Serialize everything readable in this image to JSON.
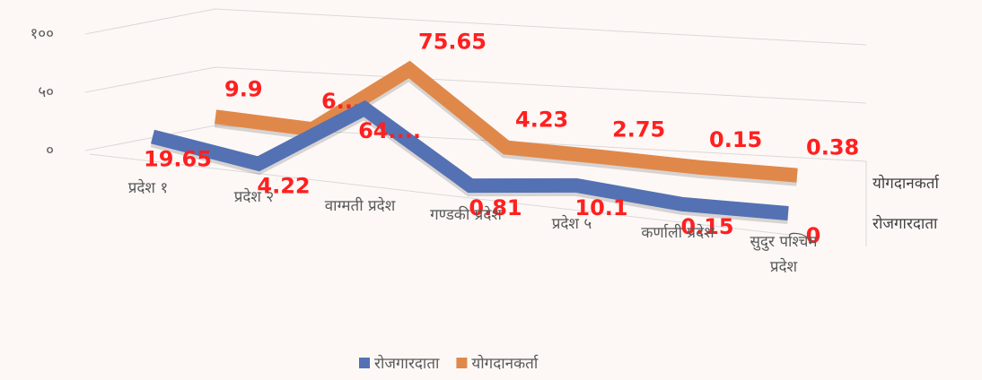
{
  "chart_data": {
    "type": "line3d",
    "categories": [
      "प्रदेश १",
      "प्रदेश २",
      "वाग्मती प्रदेश",
      "गण्डकी प्रदेश",
      "प्रदेश ५",
      "कर्णाली प्रदेश",
      "सुदुर पश्चिम प्रदेश"
    ],
    "series": [
      {
        "name": "रोजगारदाता",
        "color": "#5471b4",
        "values": [
          19.65,
          4.22,
          64,
          0.81,
          10.1,
          0.15,
          0
        ],
        "value_labels": [
          "19.65",
          "4.22",
          "64....",
          "0.81",
          "10.1",
          "0.15",
          "0"
        ]
      },
      {
        "name": "योगदानकर्ता",
        "color": "#e0884a",
        "values": [
          9.9,
          6,
          75.65,
          4.23,
          2.75,
          0.15,
          0.38
        ],
        "value_labels": [
          "9.9",
          "6....",
          "75.65",
          "4.23",
          "2.75",
          "0.15",
          "0.38"
        ]
      }
    ],
    "ylim": [
      0,
      100
    ],
    "yticks": [
      {
        "value": 0,
        "label": "०"
      },
      {
        "value": 50,
        "label": "५०"
      },
      {
        "value": 100,
        "label": "१००"
      }
    ],
    "grid": true,
    "legend": "bottom"
  }
}
